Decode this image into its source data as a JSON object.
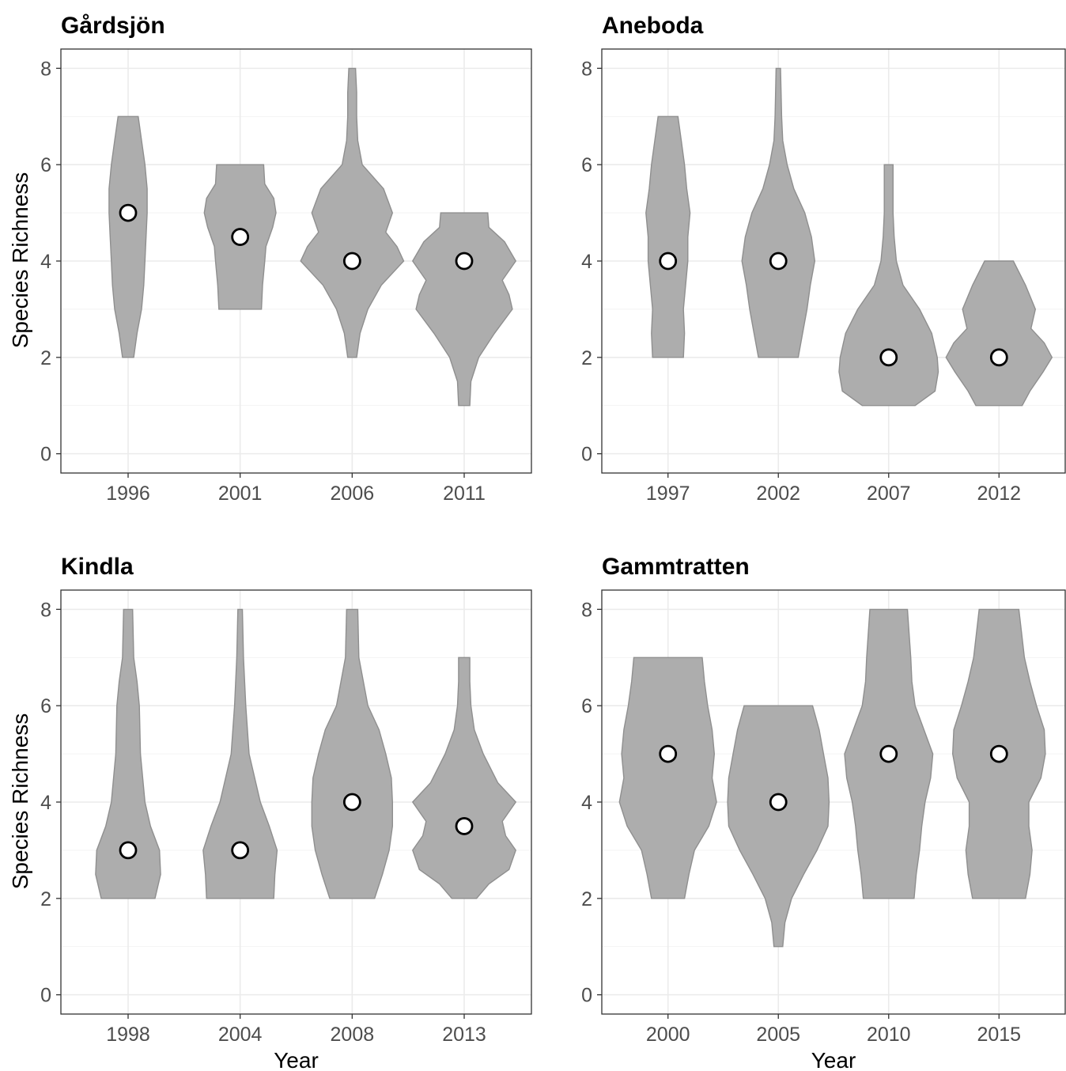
{
  "figure": {
    "xlabel": "Year",
    "ylabel": "Species Richness",
    "fill_color": "#adadad",
    "outline_color": "#8f8f8f",
    "median_marker_fill": "#ffffff",
    "median_marker_stroke": "#000000"
  },
  "chart_data": [
    {
      "type": "violin",
      "title": "Gårdsjön",
      "xlabel": "",
      "ylabel": "Species Richness",
      "ylim": [
        0,
        8
      ],
      "yticks": [
        0,
        2,
        4,
        6,
        8
      ],
      "grid": true,
      "categories": [
        "1996",
        "2001",
        "2006",
        "2011"
      ],
      "medians": [
        5,
        4.5,
        4,
        4
      ],
      "ranges": [
        [
          2,
          7
        ],
        [
          3,
          6
        ],
        [
          2,
          8
        ],
        [
          1,
          5
        ]
      ],
      "density": [
        [
          [
            2,
            0.05
          ],
          [
            2.5,
            0.08
          ],
          [
            3,
            0.12
          ],
          [
            3.5,
            0.14
          ],
          [
            4,
            0.15
          ],
          [
            4.5,
            0.16
          ],
          [
            5,
            0.17
          ],
          [
            5.5,
            0.17
          ],
          [
            6,
            0.15
          ],
          [
            6.5,
            0.12
          ],
          [
            7,
            0.09
          ]
        ],
        [
          [
            3,
            0.19
          ],
          [
            3.5,
            0.2
          ],
          [
            4,
            0.22
          ],
          [
            4.3,
            0.23
          ],
          [
            4.7,
            0.29
          ],
          [
            5,
            0.32
          ],
          [
            5.3,
            0.3
          ],
          [
            5.6,
            0.22
          ],
          [
            6,
            0.21
          ]
        ],
        [
          [
            2,
            0.04
          ],
          [
            2.5,
            0.07
          ],
          [
            3,
            0.14
          ],
          [
            3.5,
            0.26
          ],
          [
            4,
            0.46
          ],
          [
            4.3,
            0.4
          ],
          [
            4.6,
            0.3
          ],
          [
            5,
            0.36
          ],
          [
            5.5,
            0.28
          ],
          [
            6,
            0.09
          ],
          [
            6.5,
            0.05
          ],
          [
            7,
            0.04
          ],
          [
            7.5,
            0.04
          ],
          [
            8,
            0.03
          ]
        ],
        [
          [
            1,
            0.05
          ],
          [
            1.5,
            0.06
          ],
          [
            2,
            0.13
          ],
          [
            2.5,
            0.27
          ],
          [
            3,
            0.43
          ],
          [
            3.3,
            0.4
          ],
          [
            3.6,
            0.34
          ],
          [
            4,
            0.46
          ],
          [
            4.4,
            0.36
          ],
          [
            4.7,
            0.22
          ],
          [
            5,
            0.21
          ]
        ]
      ]
    },
    {
      "type": "violin",
      "title": "Aneboda",
      "xlabel": "",
      "ylabel": "",
      "ylim": [
        0,
        8
      ],
      "yticks": [
        0,
        2,
        4,
        6,
        8
      ],
      "grid": true,
      "categories": [
        "1997",
        "2002",
        "2007",
        "2012"
      ],
      "medians": [
        4,
        4,
        2,
        2
      ],
      "ranges": [
        [
          2,
          7
        ],
        [
          2,
          8
        ],
        [
          1,
          6
        ],
        [
          1,
          4
        ]
      ],
      "density": [
        [
          [
            2,
            0.14
          ],
          [
            2.5,
            0.15
          ],
          [
            3,
            0.14
          ],
          [
            3.5,
            0.16
          ],
          [
            4,
            0.18
          ],
          [
            4.5,
            0.18
          ],
          [
            5,
            0.2
          ],
          [
            5.5,
            0.17
          ],
          [
            6,
            0.15
          ],
          [
            6.5,
            0.12
          ],
          [
            7,
            0.09
          ]
        ],
        [
          [
            2,
            0.18
          ],
          [
            2.5,
            0.22
          ],
          [
            3,
            0.26
          ],
          [
            3.5,
            0.29
          ],
          [
            4,
            0.33
          ],
          [
            4.5,
            0.3
          ],
          [
            5,
            0.24
          ],
          [
            5.5,
            0.14
          ],
          [
            6,
            0.08
          ],
          [
            6.5,
            0.04
          ],
          [
            7,
            0.03
          ],
          [
            8,
            0.02
          ]
        ],
        [
          [
            1,
            0.24
          ],
          [
            1.3,
            0.42
          ],
          [
            1.7,
            0.45
          ],
          [
            2,
            0.44
          ],
          [
            2.5,
            0.39
          ],
          [
            3,
            0.28
          ],
          [
            3.5,
            0.13
          ],
          [
            4,
            0.07
          ],
          [
            4.5,
            0.05
          ],
          [
            5,
            0.04
          ],
          [
            6,
            0.04
          ]
        ],
        [
          [
            1,
            0.21
          ],
          [
            1.3,
            0.28
          ],
          [
            1.7,
            0.4
          ],
          [
            2,
            0.48
          ],
          [
            2.3,
            0.41
          ],
          [
            2.6,
            0.29
          ],
          [
            3,
            0.33
          ],
          [
            3.5,
            0.24
          ],
          [
            4,
            0.13
          ]
        ]
      ]
    },
    {
      "type": "violin",
      "title": "Kindla",
      "xlabel": "Year",
      "ylabel": "Species Richness",
      "ylim": [
        0,
        8
      ],
      "yticks": [
        0,
        2,
        4,
        6,
        8
      ],
      "grid": true,
      "categories": [
        "1998",
        "2004",
        "2008",
        "2013"
      ],
      "medians": [
        3,
        3,
        4,
        3.5
      ],
      "ranges": [
        [
          2,
          8
        ],
        [
          2,
          8
        ],
        [
          2,
          8
        ],
        [
          2,
          7
        ]
      ],
      "density": [
        [
          [
            2,
            0.24
          ],
          [
            2.5,
            0.29
          ],
          [
            3,
            0.28
          ],
          [
            3.5,
            0.2
          ],
          [
            4,
            0.15
          ],
          [
            5,
            0.11
          ],
          [
            6,
            0.1
          ],
          [
            6.5,
            0.08
          ],
          [
            7,
            0.05
          ],
          [
            8,
            0.04
          ]
        ],
        [
          [
            2,
            0.3
          ],
          [
            2.5,
            0.31
          ],
          [
            3,
            0.33
          ],
          [
            3.5,
            0.26
          ],
          [
            4,
            0.18
          ],
          [
            5,
            0.08
          ],
          [
            6,
            0.05
          ],
          [
            7,
            0.03
          ],
          [
            8,
            0.02
          ]
        ],
        [
          [
            2,
            0.2
          ],
          [
            2.5,
            0.27
          ],
          [
            3,
            0.33
          ],
          [
            3.5,
            0.36
          ],
          [
            4,
            0.36
          ],
          [
            4.5,
            0.35
          ],
          [
            5,
            0.3
          ],
          [
            5.5,
            0.24
          ],
          [
            6,
            0.14
          ],
          [
            7,
            0.06
          ],
          [
            8,
            0.05
          ]
        ],
        [
          [
            2,
            0.11
          ],
          [
            2.3,
            0.22
          ],
          [
            2.6,
            0.4
          ],
          [
            3,
            0.46
          ],
          [
            3.3,
            0.37
          ],
          [
            3.6,
            0.34
          ],
          [
            4,
            0.46
          ],
          [
            4.4,
            0.3
          ],
          [
            5,
            0.17
          ],
          [
            5.5,
            0.09
          ],
          [
            6,
            0.06
          ],
          [
            6.5,
            0.05
          ],
          [
            7,
            0.05
          ]
        ]
      ]
    },
    {
      "type": "violin",
      "title": "Gammtratten",
      "xlabel": "Year",
      "ylabel": "",
      "ylim": [
        0,
        8
      ],
      "yticks": [
        0,
        2,
        4,
        6,
        8
      ],
      "grid": true,
      "categories": [
        "2000",
        "2005",
        "2010",
        "2015"
      ],
      "medians": [
        5,
        4,
        5,
        5
      ],
      "ranges": [
        [
          2,
          7
        ],
        [
          1,
          6
        ],
        [
          2,
          8
        ],
        [
          2,
          8
        ]
      ],
      "density": [
        [
          [
            2,
            0.15
          ],
          [
            2.5,
            0.19
          ],
          [
            3,
            0.24
          ],
          [
            3.5,
            0.37
          ],
          [
            4,
            0.44
          ],
          [
            4.5,
            0.4
          ],
          [
            5,
            0.42
          ],
          [
            5.5,
            0.4
          ],
          [
            6,
            0.36
          ],
          [
            6.5,
            0.33
          ],
          [
            7,
            0.31
          ]
        ],
        [
          [
            1,
            0.04
          ],
          [
            1.5,
            0.06
          ],
          [
            2,
            0.12
          ],
          [
            2.5,
            0.23
          ],
          [
            3,
            0.35
          ],
          [
            3.5,
            0.45
          ],
          [
            4,
            0.46
          ],
          [
            4.5,
            0.45
          ],
          [
            5,
            0.41
          ],
          [
            5.5,
            0.37
          ],
          [
            6,
            0.31
          ]
        ],
        [
          [
            2,
            0.23
          ],
          [
            2.5,
            0.25
          ],
          [
            3,
            0.28
          ],
          [
            3.5,
            0.3
          ],
          [
            4,
            0.33
          ],
          [
            4.5,
            0.38
          ],
          [
            5,
            0.4
          ],
          [
            5.5,
            0.32
          ],
          [
            6,
            0.24
          ],
          [
            6.5,
            0.21
          ],
          [
            7,
            0.2
          ],
          [
            8,
            0.17
          ]
        ],
        [
          [
            2,
            0.24
          ],
          [
            2.5,
            0.28
          ],
          [
            3,
            0.3
          ],
          [
            3.5,
            0.27
          ],
          [
            4,
            0.27
          ],
          [
            4.5,
            0.38
          ],
          [
            5,
            0.42
          ],
          [
            5.5,
            0.41
          ],
          [
            6,
            0.34
          ],
          [
            6.5,
            0.28
          ],
          [
            7,
            0.23
          ],
          [
            8,
            0.18
          ]
        ]
      ]
    }
  ]
}
